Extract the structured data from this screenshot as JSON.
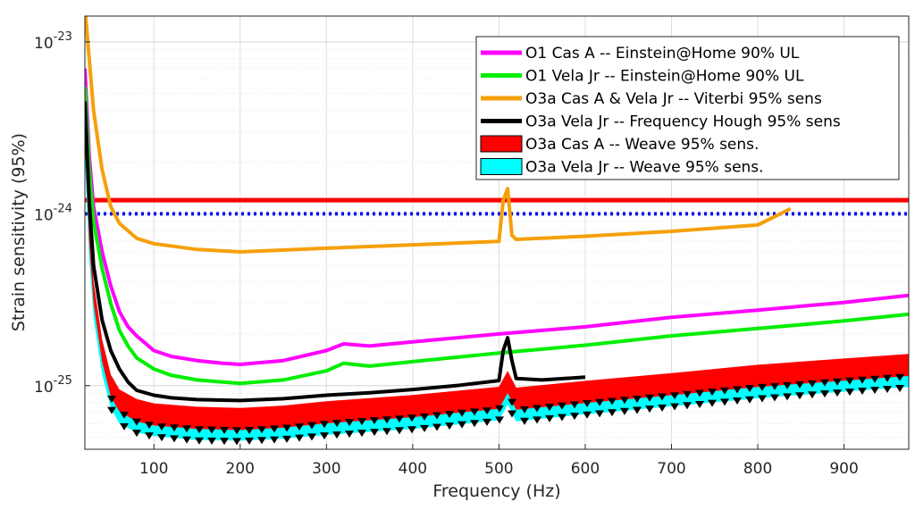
{
  "chart_data": {
    "type": "line",
    "xlabel": "Frequency (Hz)",
    "ylabel": "Strain sensitivity (95%)",
    "xlim": [
      20,
      975
    ],
    "ylim_log10": [
      -25.37,
      -22.85
    ],
    "y_scale": "log",
    "grid": true,
    "legend_position": "top-right",
    "x_ticks": [
      100,
      200,
      300,
      400,
      500,
      600,
      700,
      800,
      900
    ],
    "y_ticks": [
      {
        "exp": -23,
        "base": "10",
        "sup": "-23"
      },
      {
        "exp": -24,
        "base": "10",
        "sup": "-24"
      },
      {
        "exp": -25,
        "base": "10",
        "sup": "-25"
      }
    ],
    "colors": {
      "magenta": "#ff00ff",
      "green": "#00ee00",
      "orange": "#f5a00a",
      "black": "#000000",
      "red": "#ff0000",
      "cyan": "#00ffff",
      "blue": "#0011ee"
    },
    "reference_lines": [
      {
        "y": 1.45e-23,
        "color": "#0011ee",
        "style": "dashed"
      },
      {
        "y": 1.2e-24,
        "color": "#ff0000",
        "style": "solid"
      },
      {
        "y": 1e-24,
        "color": "#0011ee",
        "style": "dotted"
      }
    ],
    "series": [
      {
        "name": "O1 Cas A -- Einstein@Home 90% UL",
        "color": "#ff00ff",
        "type": "line",
        "x": [
          20,
          25,
          30,
          40,
          50,
          60,
          70,
          80,
          100,
          120,
          150,
          180,
          200,
          250,
          300,
          320,
          350,
          400,
          500,
          600,
          700,
          800,
          900,
          975
        ],
        "y": [
          7e-24,
          2.2e-24,
          1.1e-24,
          6e-25,
          3.8e-25,
          2.7e-25,
          2.2e-25,
          1.95e-25,
          1.6e-25,
          1.48e-25,
          1.4e-25,
          1.35e-25,
          1.33e-25,
          1.4e-25,
          1.6e-25,
          1.75e-25,
          1.7e-25,
          1.8e-25,
          2e-25,
          2.2e-25,
          2.5e-25,
          2.75e-25,
          3.05e-25,
          3.35e-25
        ]
      },
      {
        "name": "O1 Vela Jr -- Einstein@Home 90% UL",
        "color": "#00ee00",
        "type": "line",
        "x": [
          20,
          25,
          30,
          40,
          50,
          60,
          70,
          80,
          100,
          120,
          150,
          180,
          200,
          250,
          300,
          320,
          350,
          400,
          500,
          600,
          700,
          800,
          900,
          975
        ],
        "y": [
          5.5e-24,
          1.8e-24,
          9e-25,
          4.8e-25,
          3e-25,
          2.1e-25,
          1.7e-25,
          1.45e-25,
          1.25e-25,
          1.15e-25,
          1.08e-25,
          1.05e-25,
          1.03e-25,
          1.08e-25,
          1.22e-25,
          1.35e-25,
          1.3e-25,
          1.38e-25,
          1.55e-25,
          1.72e-25,
          1.95e-25,
          2.15e-25,
          2.38e-25,
          2.6e-25
        ]
      },
      {
        "name": "O3a Cas A & Vela Jr -- Viterbi 95% sens",
        "color": "#f5a00a",
        "type": "line",
        "x": [
          20,
          25,
          30,
          40,
          50,
          60,
          80,
          100,
          150,
          200,
          300,
          400,
          500,
          505,
          510,
          515,
          520,
          600,
          700,
          800,
          838
        ],
        "y": [
          1.6e-23,
          8e-24,
          4e-24,
          1.8e-24,
          1.1e-24,
          8.8e-25,
          7.2e-25,
          6.7e-25,
          6.2e-25,
          6e-25,
          6.3e-25,
          6.6e-25,
          6.9e-25,
          1.2e-24,
          1.4e-24,
          7.5e-25,
          7.1e-25,
          7.4e-25,
          7.9e-25,
          8.6e-25,
          1.07e-24
        ]
      },
      {
        "name": "O3a Vela Jr -- Frequency Hough 95% sens",
        "color": "#000000",
        "type": "line",
        "x": [
          20,
          25,
          30,
          40,
          50,
          60,
          70,
          80,
          100,
          120,
          150,
          200,
          250,
          300,
          350,
          400,
          450,
          500,
          505,
          510,
          515,
          520,
          550,
          600
        ],
        "y": [
          4.5e-24,
          1.2e-24,
          5e-25,
          2.4e-25,
          1.6e-25,
          1.25e-25,
          1.05e-25,
          9.4e-26,
          8.8e-26,
          8.5e-26,
          8.3e-26,
          8.2e-26,
          8.4e-26,
          8.8e-26,
          9.1e-26,
          9.5e-26,
          1e-25,
          1.07e-25,
          1.6e-25,
          1.9e-25,
          1.4e-25,
          1.1e-25,
          1.08e-25,
          1.12e-25
        ]
      },
      {
        "name": "O3a Cas A -- Weave 95% sens.",
        "color": "#ff0000",
        "type": "area",
        "x": [
          20,
          25,
          30,
          40,
          50,
          60,
          80,
          100,
          150,
          200,
          250,
          300,
          400,
          500,
          510,
          520,
          600,
          700,
          800,
          900,
          975
        ],
        "y": [
          3e-24,
          8e-25,
          3.5e-25,
          1.6e-25,
          1e-25,
          8.2e-26,
          7.2e-26,
          6.8e-26,
          6.5e-26,
          6.4e-26,
          6.6e-26,
          7e-26,
          7.6e-26,
          8.5e-26,
          1.05e-25,
          8.4e-26,
          9.2e-26,
          1.02e-25,
          1.14e-25,
          1.24e-25,
          1.32e-25
        ]
      },
      {
        "name": "O3a Vela Jr -- Weave 95% sens.",
        "color": "#00ffff",
        "type": "area",
        "x": [
          20,
          25,
          30,
          40,
          50,
          60,
          80,
          100,
          150,
          200,
          250,
          300,
          400,
          500,
          510,
          520,
          600,
          700,
          800,
          900,
          975
        ],
        "y": [
          2.5e-24,
          6.5e-25,
          2.9e-25,
          1.35e-25,
          8.6e-26,
          7e-26,
          6.2e-26,
          5.9e-26,
          5.6e-26,
          5.55e-26,
          5.7e-26,
          6e-26,
          6.5e-26,
          7.3e-26,
          9e-26,
          7.2e-26,
          7.9e-26,
          8.8e-26,
          9.8e-26,
          1.07e-25,
          1.14e-25
        ]
      }
    ]
  }
}
